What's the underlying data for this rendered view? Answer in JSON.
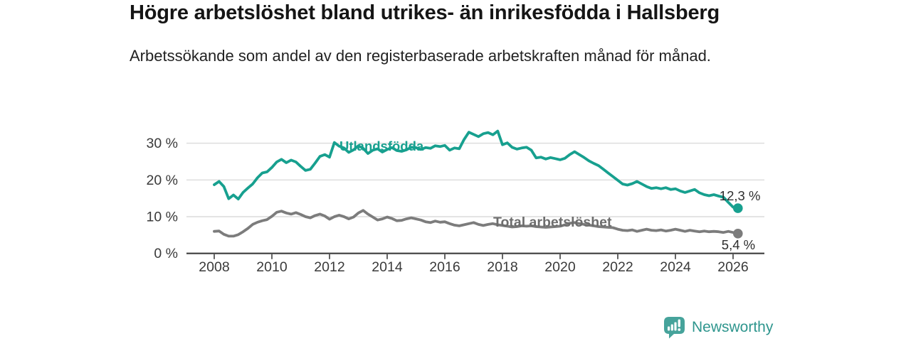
{
  "title": "Högre arbetslöshet bland utrikes- än inrikesfödda i Hallsberg",
  "subtitle": "Arbetssökande som andel av den registerbaserade arbetskraften månad för månad.",
  "branding": {
    "logo_text": "Newsworthy",
    "logo_text_color": "#2f968e",
    "logo_icon": "bar-chart-speech-bubble",
    "logo_icon_color": "#46a39b"
  },
  "chart_data": {
    "type": "line",
    "title": "Högre arbetslöshet bland utrikes- än inrikesfödda i Hallsberg",
    "subtitle": "Arbetssökande som andel av den registerbaserade arbetskraften månad för månad.",
    "grid": "horizontal",
    "grid_color": "#dcdcdc",
    "axis_color": "#3d3d3d",
    "tick_label_color": "#3a3a3a",
    "value_label_color": "#2e2e2e",
    "y_axis": {
      "unit": "%",
      "range": [
        0,
        36
      ],
      "ticks": [
        {
          "value": 0,
          "label": "0 %"
        },
        {
          "value": 10,
          "label": "10 %"
        },
        {
          "value": 20,
          "label": "20 %"
        },
        {
          "value": 30,
          "label": "30 %"
        }
      ]
    },
    "x_axis": {
      "range": [
        2007.05,
        2027.1
      ],
      "ticks": [
        2008,
        2010,
        2012,
        2014,
        2016,
        2018,
        2020,
        2022,
        2024,
        2026
      ]
    },
    "series": [
      {
        "name": "Total arbetslöshet",
        "color": "#7c7c7c",
        "label_color": "#6d6d6d",
        "end_label": "5,4 %",
        "end_value": 5.4,
        "end_label_position": "below",
        "x_start": 2008.0,
        "x_step": 0.166667,
        "values": [
          6.0,
          6.1,
          5.2,
          4.7,
          4.7,
          5.1,
          5.9,
          6.8,
          7.9,
          8.5,
          8.9,
          9.2,
          10.1,
          11.2,
          11.5,
          11.0,
          10.7,
          11.1,
          10.6,
          10.0,
          9.7,
          10.3,
          10.7,
          10.2,
          9.3,
          10.0,
          10.4,
          10.0,
          9.4,
          9.9,
          11.0,
          11.7,
          10.7,
          9.9,
          9.1,
          9.4,
          9.9,
          9.5,
          8.9,
          9.0,
          9.4,
          9.7,
          9.4,
          9.1,
          8.6,
          8.4,
          8.8,
          8.5,
          8.6,
          8.1,
          7.7,
          7.5,
          7.8,
          8.1,
          8.4,
          7.9,
          7.6,
          7.9,
          8.1,
          7.8,
          7.6,
          7.4,
          7.2,
          7.3,
          7.5,
          7.4,
          7.5,
          7.3,
          7.2,
          7.1,
          7.2,
          7.3,
          7.4,
          7.8,
          8.2,
          8.4,
          8.1,
          7.9,
          7.7,
          7.5,
          7.3,
          7.2,
          7.1,
          7.0,
          6.6,
          6.3,
          6.2,
          6.4,
          6.0,
          6.3,
          6.6,
          6.3,
          6.2,
          6.4,
          6.1,
          6.3,
          6.6,
          6.3,
          6.0,
          6.3,
          6.1,
          5.9,
          6.1,
          5.9,
          6.0,
          5.9,
          5.7,
          6.0,
          5.7,
          5.4
        ]
      },
      {
        "name": "Utlandsfödda",
        "color": "#17a08f",
        "label_color": "#17a08f",
        "end_label": "12,3 %",
        "end_value": 12.3,
        "end_label_position": "above",
        "x_start": 2008.0,
        "x_step": 0.166667,
        "values": [
          18.7,
          19.6,
          18.2,
          14.9,
          15.9,
          14.8,
          16.6,
          17.8,
          18.9,
          20.6,
          21.9,
          22.2,
          23.4,
          24.9,
          25.6,
          24.7,
          25.4,
          24.9,
          23.7,
          22.6,
          22.9,
          24.6,
          26.4,
          26.9,
          26.2,
          30.2,
          29.2,
          28.7,
          27.5,
          28.2,
          29.3,
          28.6,
          27.2,
          28.1,
          28.5,
          27.6,
          28.3,
          28.8,
          28.0,
          27.8,
          28.2,
          28.9,
          28.8,
          28.3,
          28.8,
          28.6,
          29.3,
          29.1,
          29.4,
          28.1,
          28.7,
          28.5,
          31.0,
          33.0,
          32.4,
          31.8,
          32.6,
          32.9,
          32.3,
          33.3,
          29.6,
          30.1,
          28.9,
          28.4,
          28.7,
          28.9,
          28.1,
          26.0,
          26.2,
          25.7,
          26.1,
          25.8,
          25.5,
          25.9,
          26.9,
          27.7,
          26.9,
          26.1,
          25.2,
          24.5,
          23.9,
          22.9,
          21.9,
          20.9,
          19.9,
          18.9,
          18.6,
          19.0,
          19.6,
          18.9,
          18.2,
          17.7,
          17.9,
          17.6,
          17.9,
          17.4,
          17.6,
          17.0,
          16.6,
          17.0,
          17.4,
          16.5,
          16.0,
          15.7,
          16.0,
          15.6,
          15.3,
          13.9,
          12.6,
          12.3
        ]
      }
    ]
  }
}
